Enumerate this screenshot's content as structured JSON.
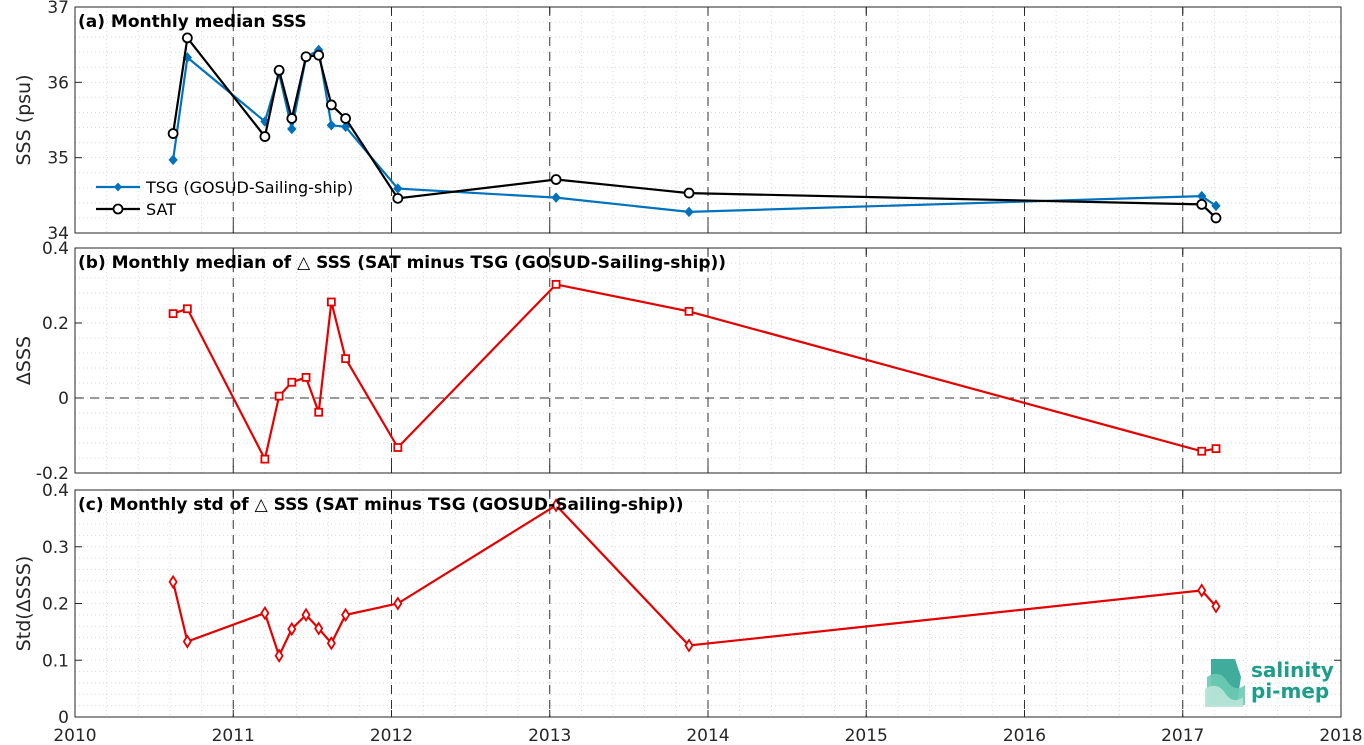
{
  "colors": {
    "tsg": "#0072BD",
    "sat": "#000000",
    "delta": "#E50000",
    "logo": "#1e9e8a"
  },
  "logo": {
    "line1": "salinity",
    "line2": "pi-mep"
  },
  "x_ticks": [
    "2010",
    "2011",
    "2012",
    "2013",
    "2014",
    "2015",
    "2016",
    "2017",
    "2018"
  ],
  "chart_data": [
    {
      "type": "line",
      "title": "(a) Monthly median SSS",
      "ylabel": "SSS (psu)",
      "xlim": [
        2010,
        2018
      ],
      "ylim": [
        34,
        37
      ],
      "y_ticks": [
        "34",
        "35",
        "36",
        "37"
      ],
      "legend_position": "middle-left",
      "x": [
        2010.62,
        2010.71,
        2011.2,
        2011.29,
        2011.37,
        2011.46,
        2011.54,
        2011.62,
        2011.71,
        2012.04,
        2013.04,
        2013.88,
        2017.12,
        2017.21
      ],
      "series": [
        {
          "name": "TSG (GOSUD-Sailing-ship)",
          "marker": "diamond",
          "values": [
            34.97,
            36.33,
            35.48,
            36.12,
            35.38,
            36.33,
            36.43,
            35.43,
            35.41,
            34.59,
            34.47,
            34.28,
            34.49,
            34.36
          ]
        },
        {
          "name": "SAT",
          "marker": "circle",
          "values": [
            35.32,
            36.59,
            35.28,
            36.16,
            35.52,
            36.34,
            36.36,
            35.7,
            35.52,
            34.46,
            34.71,
            34.53,
            34.38,
            34.2
          ]
        }
      ]
    },
    {
      "type": "line",
      "title": "(b) Monthly median of △ SSS (SAT minus TSG (GOSUD-Sailing-ship))",
      "ylabel": "ΔSSS",
      "xlim": [
        2010,
        2018
      ],
      "ylim": [
        -0.2,
        0.4
      ],
      "y_ticks": [
        "-0.2",
        "0",
        "0.2",
        "0.4"
      ],
      "reference_line": 0,
      "x": [
        2010.62,
        2010.71,
        2011.2,
        2011.29,
        2011.37,
        2011.46,
        2011.54,
        2011.62,
        2011.71,
        2012.04,
        2013.04,
        2013.88,
        2017.12,
        2017.21
      ],
      "series": [
        {
          "name": "",
          "marker": "square",
          "values": [
            0.225,
            0.238,
            -0.163,
            0.005,
            0.042,
            0.055,
            -0.038,
            0.256,
            0.105,
            -0.132,
            0.303,
            0.231,
            -0.142,
            -0.135
          ]
        }
      ]
    },
    {
      "type": "line",
      "title": "(c) Monthly std of △ SSS (SAT minus TSG (GOSUD-Sailing-ship))",
      "ylabel": "Std(ΔSSS)",
      "xlim": [
        2010,
        2018
      ],
      "ylim": [
        0,
        0.4
      ],
      "y_ticks": [
        "0",
        "0.1",
        "0.2",
        "0.3",
        "0.4"
      ],
      "x": [
        2010.62,
        2010.71,
        2011.2,
        2011.29,
        2011.37,
        2011.46,
        2011.54,
        2011.62,
        2011.71,
        2012.04,
        2013.04,
        2013.88,
        2017.12,
        2017.21
      ],
      "series": [
        {
          "name": "",
          "marker": "diamond",
          "values": [
            0.238,
            0.133,
            0.183,
            0.108,
            0.155,
            0.18,
            0.156,
            0.13,
            0.18,
            0.2,
            0.373,
            0.126,
            0.223,
            0.195
          ]
        }
      ]
    }
  ]
}
